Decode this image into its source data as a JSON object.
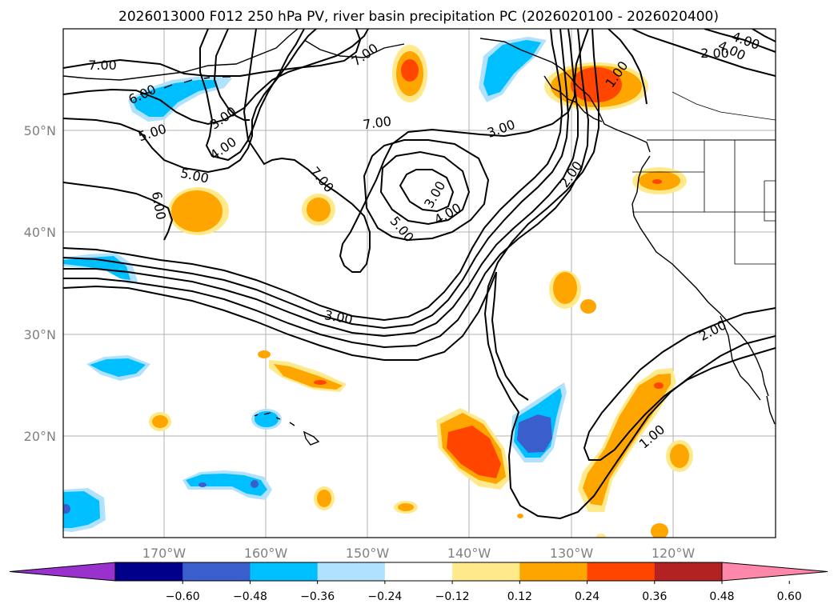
{
  "title": "2026013000 F012 250 hPa PV, river basin precipitation PC (2026020100 - 2026020400)",
  "map": {
    "lat_labels": [
      "50°N",
      "40°N",
      "30°N",
      "20°N"
    ],
    "lon_labels": [
      "170°W",
      "160°W",
      "150°W",
      "140°W",
      "130°W",
      "120°W"
    ],
    "contour_labels": [
      "7.00",
      "6.00",
      "5.00",
      "3.00",
      "4.00",
      "6.00",
      "7.00",
      "7.00",
      "5.00",
      "3.00",
      "4.00",
      "5.00",
      "7.00",
      "3.00",
      "4.00",
      "4.00",
      "3.00",
      "2.00",
      "1.00",
      "2.00",
      "2.00",
      "1.00"
    ]
  },
  "colorbar": {
    "ticks": [
      "−0.60",
      "−0.48",
      "−0.36",
      "−0.24",
      "−0.12",
      "0.12",
      "0.24",
      "0.36",
      "0.48",
      "0.60"
    ],
    "colors": [
      "#9932cc",
      "#00008b",
      "#3a5fcd",
      "#00bfff",
      "#b0e2ff",
      "#ffffff",
      "#ffe98a",
      "#ffa500",
      "#ff4500",
      "#b22222",
      "#ff88aa"
    ]
  }
}
